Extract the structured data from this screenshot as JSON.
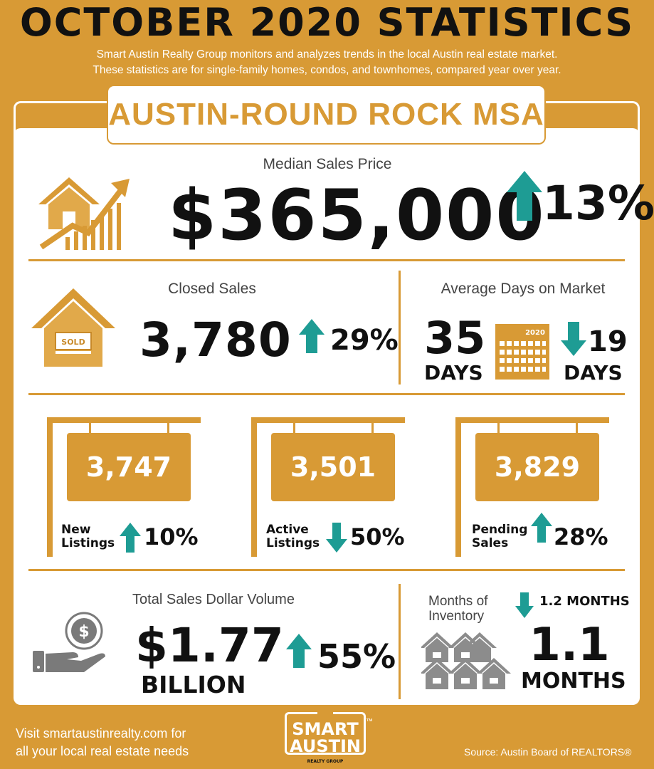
{
  "header": {
    "title": "OCTOBER 2020 STATISTICS",
    "subtitle_line1": "Smart Austin Realty Group monitors and analyzes trends in the local Austin real estate market.",
    "subtitle_line2": "These statistics are for single-family homes, condos, and townhomes, compared year over year."
  },
  "region": "AUSTIN-ROUND ROCK MSA",
  "median_price": {
    "label": "Median Sales Price",
    "value": "$365,000",
    "change": "13%",
    "direction": "up"
  },
  "closed_sales": {
    "label": "Closed Sales",
    "value": "3,780",
    "change": "29%",
    "direction": "up",
    "sign_text": "SOLD"
  },
  "days_on_market": {
    "label": "Average Days on Market",
    "value": "35",
    "unit": "DAYS",
    "calendar_year": "2020",
    "change": "19",
    "change_unit": "DAYS",
    "direction": "down"
  },
  "listings": [
    {
      "value": "3,747",
      "label_line1": "New",
      "label_line2": "Listings",
      "change": "10%",
      "direction": "up"
    },
    {
      "value": "3,501",
      "label_line1": "Active",
      "label_line2": "Listings",
      "change": "50%",
      "direction": "down"
    },
    {
      "value": "3,829",
      "label_line1": "Pending",
      "label_line2": "Sales",
      "change": "28%",
      "direction": "up"
    }
  ],
  "volume": {
    "label": "Total Sales Dollar Volume",
    "value": "$1.77",
    "unit": "BILLION",
    "change": "55%",
    "direction": "up"
  },
  "inventory": {
    "label_line1": "Months of",
    "label_line2": "Inventory",
    "previous": "1.2 MONTHS",
    "direction": "down",
    "value": "1.1",
    "unit": "MONTHS"
  },
  "footer": {
    "line1": "Visit smartaustinrealty.com for",
    "line2": "all your local real estate needs",
    "source": "Source: Austin Board of REALTORS®",
    "logo_line1": "SMART",
    "logo_line2": "AUSTIN",
    "logo_sub": "REALTY GROUP",
    "logo_tm": "™"
  },
  "colors": {
    "gold": "#D89A35",
    "teal": "#1E9C94",
    "gray": "#8C8C8C"
  }
}
